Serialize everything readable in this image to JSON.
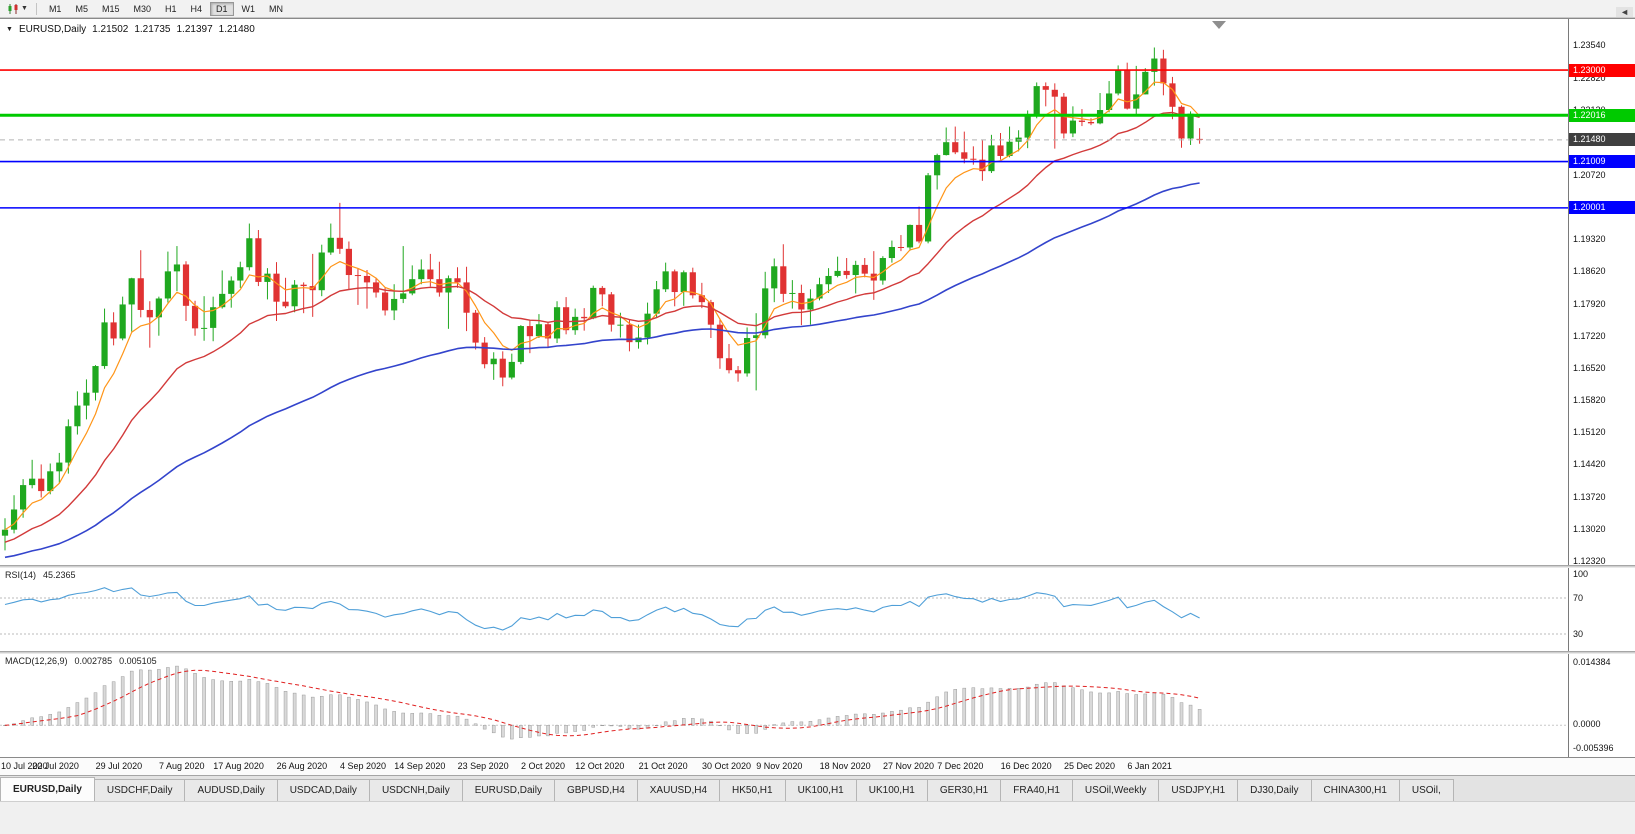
{
  "toolbar": {
    "timeframes": [
      "M1",
      "M5",
      "M15",
      "M30",
      "H1",
      "H4",
      "D1",
      "W1",
      "MN"
    ],
    "active": "D1"
  },
  "chart": {
    "title": "EURUSD,Daily",
    "ohlc": {
      "open": "1.21502",
      "high": "1.21735",
      "low": "1.21397",
      "close": "1.21480"
    }
  },
  "chart_data": {
    "type": "candlestick",
    "symbol": "EURUSD",
    "timeframe": "Daily",
    "colors": {
      "up": "#1fa81f",
      "down": "#e03232"
    },
    "y_range": [
      1.1221,
      1.2411
    ],
    "y_axis_labels": [
      "1.23540",
      "1.22820",
      "1.22120",
      "1.21420",
      "1.20720",
      "1.20020",
      "1.19320",
      "1.18620",
      "1.17920",
      "1.17220",
      "1.16520",
      "1.15820",
      "1.15120",
      "1.14420",
      "1.13720",
      "1.13020",
      "1.12320"
    ],
    "x_ticks": [
      {
        "t": "10 Jul 2020",
        "i": 0
      },
      {
        "t": "20 Jul 2020",
        "i": 6
      },
      {
        "t": "29 Jul 2020",
        "i": 13
      },
      {
        "t": "7 Aug 2020",
        "i": 20
      },
      {
        "t": "17 Aug 2020",
        "i": 26
      },
      {
        "t": "26 Aug 2020",
        "i": 33
      },
      {
        "t": "4 Sep 2020",
        "i": 40
      },
      {
        "t": "14 Sep 2020",
        "i": 46
      },
      {
        "t": "23 Sep 2020",
        "i": 53
      },
      {
        "t": "2 Oct 2020",
        "i": 60
      },
      {
        "t": "12 Oct 2020",
        "i": 66
      },
      {
        "t": "21 Oct 2020",
        "i": 73
      },
      {
        "t": "30 Oct 2020",
        "i": 80
      },
      {
        "t": "9 Nov 2020",
        "i": 86
      },
      {
        "t": "18 Nov 2020",
        "i": 93
      },
      {
        "t": "27 Nov 2020",
        "i": 100
      },
      {
        "t": "7 Dec 2020",
        "i": 106
      },
      {
        "t": "16 Dec 2020",
        "i": 113
      },
      {
        "t": "25 Dec 2020",
        "i": 120
      },
      {
        "t": "6 Jan 2021",
        "i": 127
      }
    ],
    "hlines": [
      {
        "price": 1.23,
        "label": "1.23000",
        "color": "#ff0000",
        "width": 1.6
      },
      {
        "price": 1.22016,
        "label": "1.22016",
        "color": "#00ca00",
        "width": 3
      },
      {
        "price": 1.21009,
        "label": "1.21009",
        "color": "#0000ff",
        "width": 1.6
      },
      {
        "price": 1.20001,
        "label": "1.20001",
        "color": "#0000ff",
        "width": 1.6
      }
    ],
    "bid": {
      "price": 1.2148,
      "label": "1.21480",
      "color": "#3f3f3f"
    },
    "overlays": [
      {
        "name": "ma-fast",
        "color": "#ff9518"
      },
      {
        "name": "ma-medium",
        "color": "#d23a3a"
      },
      {
        "name": "ma-slow",
        "color": "#3344cc"
      }
    ],
    "candles": [
      [
        1.1287,
        1.1325,
        1.1255,
        1.13
      ],
      [
        1.13,
        1.1375,
        1.1292,
        1.1344
      ],
      [
        1.1344,
        1.141,
        1.1326,
        1.1397
      ],
      [
        1.1397,
        1.1452,
        1.139,
        1.1411
      ],
      [
        1.1411,
        1.1442,
        1.137,
        1.1384
      ],
      [
        1.1384,
        1.1444,
        1.1377,
        1.1427
      ],
      [
        1.1427,
        1.1467,
        1.1402,
        1.1446
      ],
      [
        1.1446,
        1.154,
        1.1422,
        1.1525
      ],
      [
        1.1525,
        1.1601,
        1.1507,
        1.157
      ],
      [
        1.157,
        1.1627,
        1.154,
        1.1598
      ],
      [
        1.1598,
        1.1658,
        1.1581,
        1.1656
      ],
      [
        1.1656,
        1.1781,
        1.165,
        1.1751
      ],
      [
        1.1751,
        1.1773,
        1.1701,
        1.1716
      ],
      [
        1.1716,
        1.1807,
        1.1712,
        1.179
      ],
      [
        1.179,
        1.1848,
        1.1731,
        1.1847
      ],
      [
        1.1847,
        1.1908,
        1.1762,
        1.1778
      ],
      [
        1.1778,
        1.1797,
        1.1696,
        1.1762
      ],
      [
        1.1762,
        1.1807,
        1.1722,
        1.1803
      ],
      [
        1.1803,
        1.1905,
        1.1794,
        1.1862
      ],
      [
        1.1862,
        1.1917,
        1.1819,
        1.1877
      ],
      [
        1.1877,
        1.1884,
        1.1754,
        1.1787
      ],
      [
        1.1787,
        1.1798,
        1.1722,
        1.1738
      ],
      [
        1.1738,
        1.1808,
        1.1711,
        1.1739
      ],
      [
        1.1739,
        1.1807,
        1.171,
        1.1784
      ],
      [
        1.1784,
        1.1864,
        1.1781,
        1.1813
      ],
      [
        1.1813,
        1.1851,
        1.1783,
        1.1842
      ],
      [
        1.1842,
        1.1883,
        1.1826,
        1.1871
      ],
      [
        1.1871,
        1.1966,
        1.1864,
        1.1934
      ],
      [
        1.1934,
        1.1952,
        1.183,
        1.1839
      ],
      [
        1.1839,
        1.1869,
        1.1801,
        1.1857
      ],
      [
        1.1857,
        1.1882,
        1.1754,
        1.1796
      ],
      [
        1.1796,
        1.1848,
        1.1782,
        1.1786
      ],
      [
        1.1786,
        1.1843,
        1.1773,
        1.1833
      ],
      [
        1.1833,
        1.1838,
        1.1771,
        1.183
      ],
      [
        1.183,
        1.19,
        1.1763,
        1.1821
      ],
      [
        1.1821,
        1.192,
        1.1808,
        1.1903
      ],
      [
        1.1903,
        1.1966,
        1.1898,
        1.1935
      ],
      [
        1.1935,
        1.2011,
        1.19,
        1.1911
      ],
      [
        1.1911,
        1.1927,
        1.1823,
        1.1854
      ],
      [
        1.1854,
        1.1868,
        1.1789,
        1.1852
      ],
      [
        1.1852,
        1.1865,
        1.1781,
        1.1838
      ],
      [
        1.1838,
        1.1848,
        1.1805,
        1.1816
      ],
      [
        1.1816,
        1.1827,
        1.1766,
        1.1777
      ],
      [
        1.1777,
        1.1834,
        1.1756,
        1.1802
      ],
      [
        1.1802,
        1.1917,
        1.1793,
        1.1814
      ],
      [
        1.1814,
        1.1875,
        1.181,
        1.1845
      ],
      [
        1.1845,
        1.1888,
        1.1834,
        1.1866
      ],
      [
        1.1866,
        1.19,
        1.1829,
        1.1845
      ],
      [
        1.1845,
        1.1883,
        1.1807,
        1.1816
      ],
      [
        1.1816,
        1.1853,
        1.1737,
        1.1847
      ],
      [
        1.1847,
        1.1871,
        1.1826,
        1.1838
      ],
      [
        1.1838,
        1.1872,
        1.1732,
        1.1772
      ],
      [
        1.1772,
        1.1778,
        1.1692,
        1.1707
      ],
      [
        1.1707,
        1.1719,
        1.1651,
        1.166
      ],
      [
        1.166,
        1.1686,
        1.1626,
        1.1672
      ],
      [
        1.1672,
        1.1688,
        1.1612,
        1.1631
      ],
      [
        1.1631,
        1.1683,
        1.1627,
        1.1665
      ],
      [
        1.1665,
        1.1745,
        1.166,
        1.1743
      ],
      [
        1.1743,
        1.1755,
        1.1684,
        1.1721
      ],
      [
        1.1721,
        1.1769,
        1.1717,
        1.1747
      ],
      [
        1.1747,
        1.1751,
        1.1695,
        1.1716
      ],
      [
        1.1716,
        1.1797,
        1.1706,
        1.1784
      ],
      [
        1.1784,
        1.1806,
        1.1725,
        1.1734
      ],
      [
        1.1734,
        1.1781,
        1.1724,
        1.1763
      ],
      [
        1.1763,
        1.1782,
        1.1733,
        1.176
      ],
      [
        1.176,
        1.1831,
        1.1758,
        1.1826
      ],
      [
        1.1826,
        1.183,
        1.1786,
        1.1812
      ],
      [
        1.1812,
        1.1817,
        1.1731,
        1.1746
      ],
      [
        1.1746,
        1.1772,
        1.1718,
        1.1746
      ],
      [
        1.1746,
        1.1758,
        1.1688,
        1.1708
      ],
      [
        1.1708,
        1.1746,
        1.1694,
        1.1718
      ],
      [
        1.1718,
        1.1794,
        1.1703,
        1.177
      ],
      [
        1.177,
        1.1841,
        1.1761,
        1.1823
      ],
      [
        1.1823,
        1.1881,
        1.1817,
        1.1862
      ],
      [
        1.1862,
        1.1866,
        1.1786,
        1.1817
      ],
      [
        1.1817,
        1.1864,
        1.1787,
        1.186
      ],
      [
        1.186,
        1.187,
        1.1803,
        1.181
      ],
      [
        1.181,
        1.1837,
        1.1782,
        1.1795
      ],
      [
        1.1795,
        1.18,
        1.1717,
        1.1746
      ],
      [
        1.1746,
        1.1759,
        1.165,
        1.1673
      ],
      [
        1.1673,
        1.1704,
        1.164,
        1.1647
      ],
      [
        1.1647,
        1.1656,
        1.1622,
        1.164
      ],
      [
        1.164,
        1.174,
        1.1633,
        1.1717
      ],
      [
        1.1717,
        1.1771,
        1.1603,
        1.1723
      ],
      [
        1.1723,
        1.1861,
        1.1716,
        1.1825
      ],
      [
        1.1825,
        1.189,
        1.1795,
        1.1873
      ],
      [
        1.1873,
        1.1921,
        1.1795,
        1.1813
      ],
      [
        1.1813,
        1.1843,
        1.1781,
        1.1815
      ],
      [
        1.1815,
        1.1833,
        1.1745,
        1.1779
      ],
      [
        1.1779,
        1.1823,
        1.1746,
        1.1803
      ],
      [
        1.1803,
        1.1848,
        1.1799,
        1.1834
      ],
      [
        1.1834,
        1.1869,
        1.1815,
        1.1852
      ],
      [
        1.1852,
        1.1894,
        1.1849,
        1.1863
      ],
      [
        1.1863,
        1.1891,
        1.1846,
        1.1854
      ],
      [
        1.1854,
        1.1885,
        1.1814,
        1.1876
      ],
      [
        1.1876,
        1.1891,
        1.1849,
        1.1857
      ],
      [
        1.1857,
        1.1906,
        1.18,
        1.1842
      ],
      [
        1.1842,
        1.1895,
        1.1833,
        1.1891
      ],
      [
        1.1891,
        1.1929,
        1.1881,
        1.1915
      ],
      [
        1.1915,
        1.1941,
        1.1906,
        1.1914
      ],
      [
        1.1914,
        1.1964,
        1.1907,
        1.1963
      ],
      [
        1.1963,
        1.2003,
        1.1923,
        1.1927
      ],
      [
        1.1927,
        1.2076,
        1.1923,
        1.2071
      ],
      [
        1.2071,
        1.2118,
        1.204,
        1.2115
      ],
      [
        1.2115,
        1.2175,
        1.2114,
        1.2143
      ],
      [
        1.2143,
        1.2177,
        1.2117,
        1.2121
      ],
      [
        1.2121,
        1.2166,
        1.2097,
        1.2107
      ],
      [
        1.2107,
        1.2134,
        1.2094,
        1.2105
      ],
      [
        1.2105,
        1.2147,
        1.2059,
        1.208
      ],
      [
        1.208,
        1.2159,
        1.2076,
        1.2136
      ],
      [
        1.2136,
        1.2163,
        1.2105,
        1.2113
      ],
      [
        1.2113,
        1.2177,
        1.211,
        1.2144
      ],
      [
        1.2144,
        1.2169,
        1.2123,
        1.2153
      ],
      [
        1.2153,
        1.2212,
        1.213,
        1.2199
      ],
      [
        1.2199,
        1.2273,
        1.2195,
        1.2265
      ],
      [
        1.2265,
        1.2273,
        1.2221,
        1.2257
      ],
      [
        1.2257,
        1.2271,
        1.2129,
        1.2242
      ],
      [
        1.2242,
        1.225,
        1.2151,
        1.2162
      ],
      [
        1.2162,
        1.2221,
        1.2154,
        1.219
      ],
      [
        1.219,
        1.2215,
        1.2178,
        1.2187
      ],
      [
        1.2187,
        1.2195,
        1.218,
        1.2184
      ],
      [
        1.2184,
        1.225,
        1.2182,
        1.2213
      ],
      [
        1.2213,
        1.2276,
        1.2208,
        1.2249
      ],
      [
        1.2249,
        1.231,
        1.2245,
        1.2299
      ],
      [
        1.2299,
        1.2316,
        1.2214,
        1.2216
      ],
      [
        1.2216,
        1.2309,
        1.2203,
        1.2247
      ],
      [
        1.2247,
        1.2304,
        1.2247,
        1.2296
      ],
      [
        1.2296,
        1.2349,
        1.2266,
        1.2325
      ],
      [
        1.2325,
        1.2344,
        1.2245,
        1.2271
      ],
      [
        1.2271,
        1.2285,
        1.2193,
        1.222
      ],
      [
        1.222,
        1.2223,
        1.2131,
        1.2151
      ],
      [
        1.2151,
        1.221,
        1.2137,
        1.2205
      ],
      [
        1.21502,
        1.21735,
        1.21397,
        1.2148
      ]
    ],
    "rsi": {
      "label": "RSI(14)",
      "value": "45.2365",
      "levels": [
        70,
        30
      ],
      "axis_labels": [
        "100",
        "70",
        "30"
      ],
      "color": "#4f9fd8"
    },
    "macd": {
      "label": "MACD(12,26,9)",
      "value_macd": "0.002785",
      "value_signal": "0.005105",
      "axis_labels": [
        "0.014384",
        "0.0000",
        "-0.005396"
      ],
      "axis_max": 0.014384,
      "axis_min": -0.005396,
      "hist_color": "#d9d9d9",
      "signal_color": "#e02020"
    }
  },
  "tabs": {
    "items": [
      "EURUSD,Daily",
      "USDCHF,Daily",
      "AUDUSD,Daily",
      "USDCAD,Daily",
      "USDCNH,Daily",
      "EURUSD,Daily",
      "GBPUSD,H4",
      "XAUUSD,H4",
      "HK50,H1",
      "UK100,H1",
      "UK100,H1",
      "GER30,H1",
      "FRA40,H1",
      "USOil,Weekly",
      "USDJPY,H1",
      "DJ30,Daily",
      "CHINA300,H1",
      "USOil,"
    ],
    "active_index": 0,
    "scroll_left_glyph": "◄"
  }
}
